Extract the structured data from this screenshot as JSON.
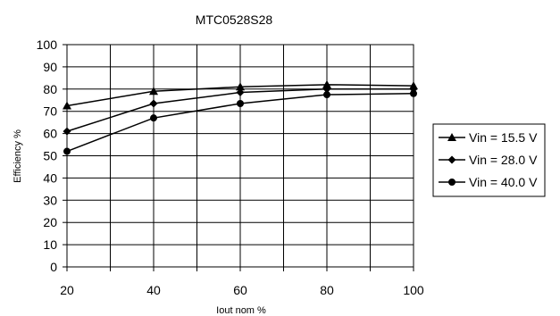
{
  "chart_data": {
    "type": "line",
    "title": "MTC0528S28",
    "xlabel": "Iout nom %",
    "ylabel": "Efficiency %",
    "x": [
      20,
      40,
      60,
      80,
      100
    ],
    "xlim": [
      20,
      100
    ],
    "ylim": [
      0,
      100
    ],
    "x_ticks": [
      20,
      40,
      60,
      80,
      100
    ],
    "y_ticks": [
      0,
      10,
      20,
      30,
      40,
      50,
      60,
      70,
      80,
      90,
      100
    ],
    "x_grid_lines": [
      20,
      30,
      40,
      50,
      60,
      70,
      80,
      90,
      100
    ],
    "grid": true,
    "legend_position": "right",
    "series": [
      {
        "name": "Vin = 15.5 V",
        "marker": "triangle",
        "values": [
          72.5,
          79,
          81,
          82,
          81.5
        ]
      },
      {
        "name": "Vin = 28.0 V",
        "marker": "diamond",
        "values": [
          61,
          73.5,
          78.5,
          80,
          80
        ]
      },
      {
        "name": "Vin = 40.0 V",
        "marker": "circle",
        "values": [
          52,
          67,
          73.5,
          77.5,
          78
        ]
      }
    ],
    "colors": {
      "line": "#000000",
      "grid": "#000000",
      "background": "#ffffff"
    }
  }
}
